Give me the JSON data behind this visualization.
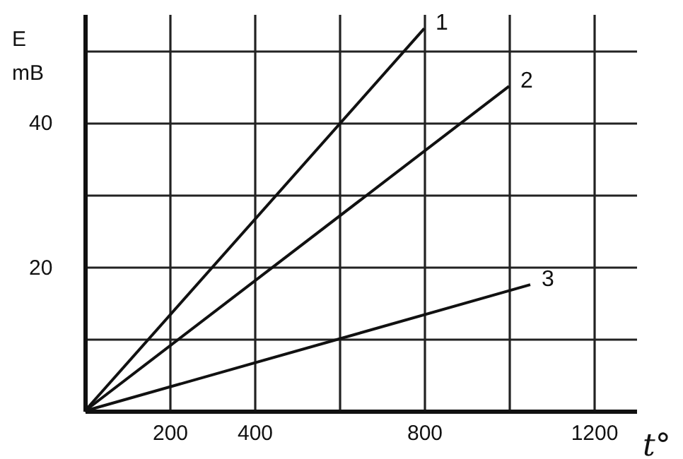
{
  "chart_data": {
    "type": "line",
    "xlabel": "t°",
    "ylabel": "E mB",
    "series": [
      {
        "name": "1",
        "color": "#111111",
        "x": [
          0,
          800
        ],
        "values": [
          0,
          53
        ]
      },
      {
        "name": "2",
        "color": "#111111",
        "x": [
          0,
          1000
        ],
        "values": [
          0,
          45
        ]
      },
      {
        "name": "3",
        "color": "#111111",
        "x": [
          0,
          1050
        ],
        "values": [
          0,
          17.5
        ]
      }
    ],
    "xlim": [
      0,
      1300
    ],
    "xticks": [
      200,
      400,
      {
        "value": 600,
        "label": null
      },
      800,
      {
        "value": 1000,
        "label": null
      },
      1200
    ],
    "ylim": [
      0,
      55
    ],
    "yticks": [
      {
        "value": 10,
        "label": null
      },
      20,
      {
        "value": 30,
        "label": null
      },
      40,
      {
        "value": 50,
        "label": null
      }
    ],
    "grid": true,
    "marker": "none",
    "line_style": "solid"
  }
}
